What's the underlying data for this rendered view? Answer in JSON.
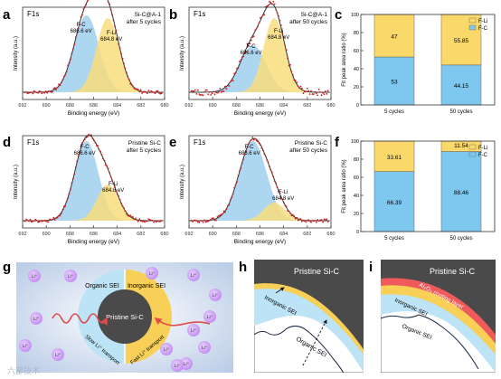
{
  "panel_letters": [
    "a",
    "b",
    "c",
    "d",
    "e",
    "f",
    "g",
    "h",
    "i"
  ],
  "xps_common": {
    "xlabel": "Binding energy (eV)",
    "ylabel": "Intensity (a.u.)",
    "element": "F1s",
    "xticks": [
      692,
      690,
      688,
      686,
      684,
      682,
      680
    ]
  },
  "bar_common": {
    "ylabel": "Fit peak area ratio (%)",
    "yticks": [
      0,
      20,
      40,
      60,
      80,
      100
    ],
    "legend": [
      "F-Li",
      "F-C"
    ]
  },
  "colors": {
    "fc": "#9fcfee",
    "fli": "#f8dd7c",
    "fc_bar": "#7ec8f0",
    "fli_bar": "#fbd86a",
    "data": "#cc1f1f",
    "fit": "#333333",
    "carbon": "#4a4a4a",
    "organic": "#bde3f7",
    "inorganic": "#f8cf57",
    "al2o3": "#f05a5a",
    "li_ion": "#cc99f0"
  },
  "chart_data": [
    {
      "panel": "a",
      "type": "line",
      "title": "F1s",
      "sample": "Si-C@A-1",
      "condition": "after 5 cycles",
      "xlim": [
        692,
        680
      ],
      "xlabel": "Binding energy (eV)",
      "ylabel": "Intensity (a.u.)",
      "peaks": [
        {
          "name": "F-C",
          "center": 686.6,
          "label": "686.6 eV",
          "amplitude": 0.85,
          "width": 1.05
        },
        {
          "name": "F-Li",
          "center": 684.8,
          "label": "684.8 eV",
          "amplitude": 0.82,
          "width": 0.95
        }
      ]
    },
    {
      "panel": "b",
      "type": "line",
      "title": "F1s",
      "sample": "Si-C@A-1",
      "condition": "after 50 cycles",
      "xlim": [
        692,
        680
      ],
      "xlabel": "Binding energy (eV)",
      "ylabel": "Intensity (a.u.)",
      "peaks": [
        {
          "name": "F-C",
          "center": 686.6,
          "label": "686.6 eV",
          "amplitude": 0.52,
          "width": 1.1
        },
        {
          "name": "F-Li",
          "center": 684.8,
          "label": "684.8 eV",
          "amplitude": 0.82,
          "width": 0.9
        }
      ]
    },
    {
      "panel": "c",
      "type": "bar",
      "stacked": true,
      "categories": [
        "5 cycles",
        "50 cycles"
      ],
      "series": [
        {
          "name": "F-C",
          "values": [
            53,
            44.15
          ]
        },
        {
          "name": "F-Li",
          "values": [
            47,
            55.85
          ]
        }
      ],
      "value_labels": [
        [
          "53",
          "47"
        ],
        [
          "44.15",
          "55.85"
        ]
      ],
      "ylabel": "Fit peak area ratio (%)",
      "ylim": [
        0,
        100
      ]
    },
    {
      "panel": "d",
      "type": "line",
      "title": "F1s",
      "sample": "Pristine Si-C",
      "condition": "after 5 cycles",
      "xlim": [
        692,
        680
      ],
      "xlabel": "Binding energy (eV)",
      "ylabel": "Intensity (a.u.)",
      "peaks": [
        {
          "name": "F-C",
          "center": 686.6,
          "label": "686.6 eV",
          "amplitude": 0.88,
          "width": 1.0
        },
        {
          "name": "F-Li",
          "center": 684.8,
          "label": "684.8 eV",
          "amplitude": 0.4,
          "width": 0.9
        }
      ]
    },
    {
      "panel": "e",
      "type": "line",
      "title": "F1s",
      "sample": "Pristine Si-C",
      "condition": "after 50 cycles",
      "xlim": [
        692,
        680
      ],
      "xlabel": "Binding energy (eV)",
      "ylabel": "Intensity (a.u.)",
      "peaks": [
        {
          "name": "F-C",
          "center": 686.6,
          "label": "686.6 eV",
          "amplitude": 0.88,
          "width": 1.15
        },
        {
          "name": "F-Li",
          "center": 684.8,
          "label": "684.8 eV",
          "amplitude": 0.2,
          "width": 0.9
        }
      ]
    },
    {
      "panel": "f",
      "type": "bar",
      "stacked": true,
      "categories": [
        "5 cycles",
        "50 cycles"
      ],
      "series": [
        {
          "name": "F-C",
          "values": [
            66.39,
            88.46
          ]
        },
        {
          "name": "F-Li",
          "values": [
            33.61,
            11.54
          ]
        }
      ],
      "value_labels": [
        [
          "66.39",
          "33.61"
        ],
        [
          "88.46",
          "11.54"
        ]
      ],
      "ylabel": "Fit peak area ratio (%)",
      "ylim": [
        0,
        100
      ]
    }
  ],
  "diagram_g": {
    "core": "Pristine Si-C",
    "organic_sei": "Organic SEI",
    "inorganic_sei": "Inorganic SEI",
    "slow": "Slow Li⁺ transport",
    "fast": "Fast Li⁺ transport",
    "li_ion": "Li⁺"
  },
  "diagram_h": {
    "title": "Pristine Si-C",
    "inorganic": "Inorganic SEI",
    "organic": "Organic SEI"
  },
  "diagram_i": {
    "title": "Pristine Si-C",
    "coating": "Al₂O₃ coating layer",
    "inorganic": "Inorganic SEI",
    "organic": "Organic SEI"
  },
  "watermark": "六部技术"
}
